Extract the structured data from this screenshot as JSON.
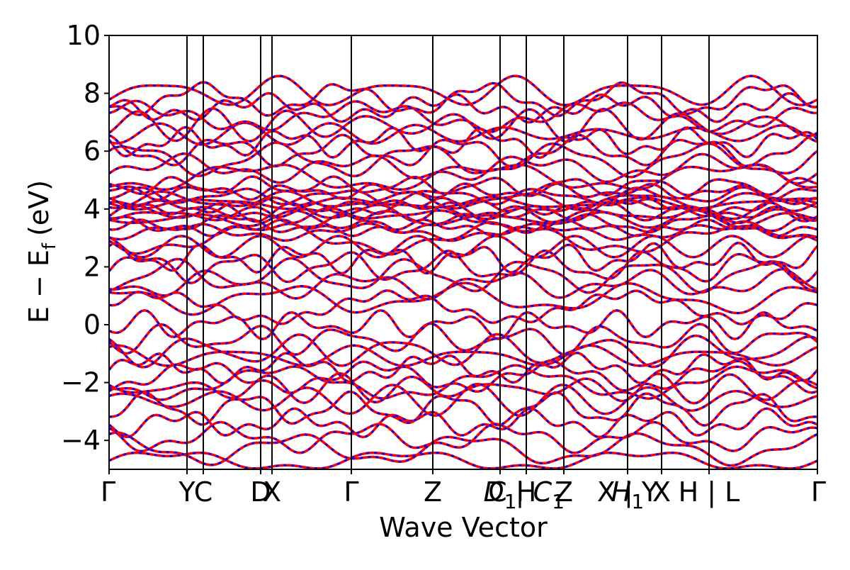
{
  "chart_data": {
    "type": "line",
    "title": "",
    "xlabel": "Wave Vector",
    "ylabel": "E − E",
    "ylabel_subscript": "f",
    "ylabel_unit": "(eV)",
    "ylim": [
      -5,
      10
    ],
    "yticks": [
      "10",
      "8",
      "6",
      "4",
      "2",
      "0",
      "−2",
      "−4"
    ],
    "ytick_values": [
      10,
      8,
      6,
      4,
      2,
      0,
      -2,
      -4
    ],
    "xlim": [
      0,
      1
    ],
    "high_symmetry_points": [
      {
        "x": 0.0,
        "label": "Γ"
      },
      {
        "x": 0.11,
        "label": "Y"
      },
      {
        "x": 0.133,
        "label": "C"
      },
      {
        "x": 0.214,
        "label": "D"
      },
      {
        "x": 0.23,
        "label": "X"
      },
      {
        "x": 0.342,
        "label": "Γ"
      },
      {
        "x": 0.457,
        "label": "Z"
      },
      {
        "x": 0.552,
        "label": "D1"
      },
      {
        "x": 0.589,
        "label": "H"
      },
      {
        "x": 0.589,
        "label": "C | C1"
      },
      {
        "x": 0.642,
        "label": "Z"
      },
      {
        "x": 0.732,
        "label": "H1"
      },
      {
        "x": 0.732,
        "label": "X | Y"
      },
      {
        "x": 0.78,
        "label": "X"
      },
      {
        "x": 0.847,
        "label": "H | L"
      },
      {
        "x": 1.0,
        "label": "Γ"
      }
    ],
    "vertical_lines_x": [
      0.11,
      0.133,
      0.214,
      0.23,
      0.342,
      0.457,
      0.552,
      0.589,
      0.642,
      0.732,
      0.78,
      0.847
    ],
    "series": [
      {
        "color": "#ff0000",
        "style": "solid"
      },
      {
        "color": "#0000ff",
        "style": "dashed"
      }
    ],
    "band_levels": [
      -4.7,
      -4.3,
      -3.9,
      -3.4,
      -2.9,
      -2.6,
      -2.2,
      -2.0,
      -1.8,
      -1.5,
      -1.1,
      -0.9,
      -0.5,
      0.0,
      0.6,
      0.9,
      1.4,
      1.7,
      2.0,
      2.3,
      2.7,
      3.0,
      3.2,
      3.35,
      3.5,
      3.65,
      3.8,
      3.9,
      4.0,
      4.1,
      4.2,
      4.3,
      4.45,
      4.6,
      4.8,
      5.1,
      5.4,
      5.7,
      6.0,
      6.3,
      6.6,
      6.9,
      7.2,
      7.5,
      7.8,
      8.05
    ],
    "grid": false,
    "legend": "none"
  }
}
